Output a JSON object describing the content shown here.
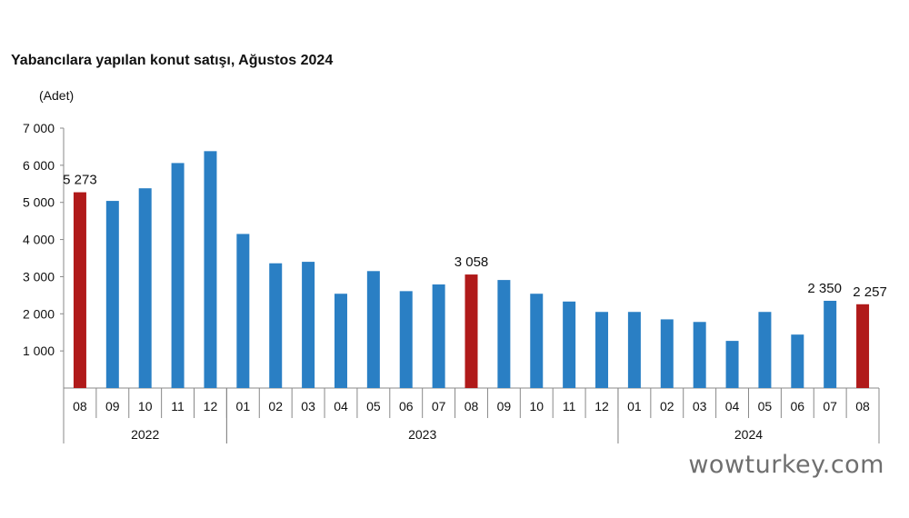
{
  "chart_data": {
    "type": "bar",
    "title": "Yabancılara yapılan konut satışı, Ağustos 2024",
    "ylabel": "(Adet)",
    "xlabel": "",
    "ylim": [
      0,
      7000
    ],
    "yticks": [
      "7 000",
      "6 000",
      "5 000",
      "4 000",
      "3 000",
      "2 000",
      "1 000"
    ],
    "ytick_values": [
      7000,
      6000,
      5000,
      4000,
      3000,
      2000,
      1000
    ],
    "grid": false,
    "categories": [
      "08",
      "09",
      "10",
      "11",
      "12",
      "01",
      "02",
      "03",
      "04",
      "05",
      "06",
      "07",
      "08",
      "09",
      "10",
      "11",
      "12",
      "01",
      "02",
      "03",
      "04",
      "05",
      "06",
      "07",
      "08"
    ],
    "years": [
      {
        "label": "2022",
        "start": 0,
        "end": 4
      },
      {
        "label": "2023",
        "start": 5,
        "end": 16
      },
      {
        "label": "2024",
        "start": 17,
        "end": 24
      }
    ],
    "values": [
      5273,
      5040,
      5380,
      6060,
      6380,
      4150,
      3360,
      3400,
      2540,
      3150,
      2610,
      2790,
      3058,
      2910,
      2540,
      2330,
      2050,
      2050,
      1850,
      1780,
      1270,
      2050,
      1440,
      2350,
      2257
    ],
    "highlighted": [
      0,
      12,
      24
    ],
    "data_labels": {
      "0": "5 273",
      "12": "3 058",
      "23": "2 350",
      "24": "2 257"
    },
    "colors": {
      "default": "#2a7fc4",
      "highlight": "#b01a1a"
    }
  },
  "watermark": "wowturkey.com"
}
